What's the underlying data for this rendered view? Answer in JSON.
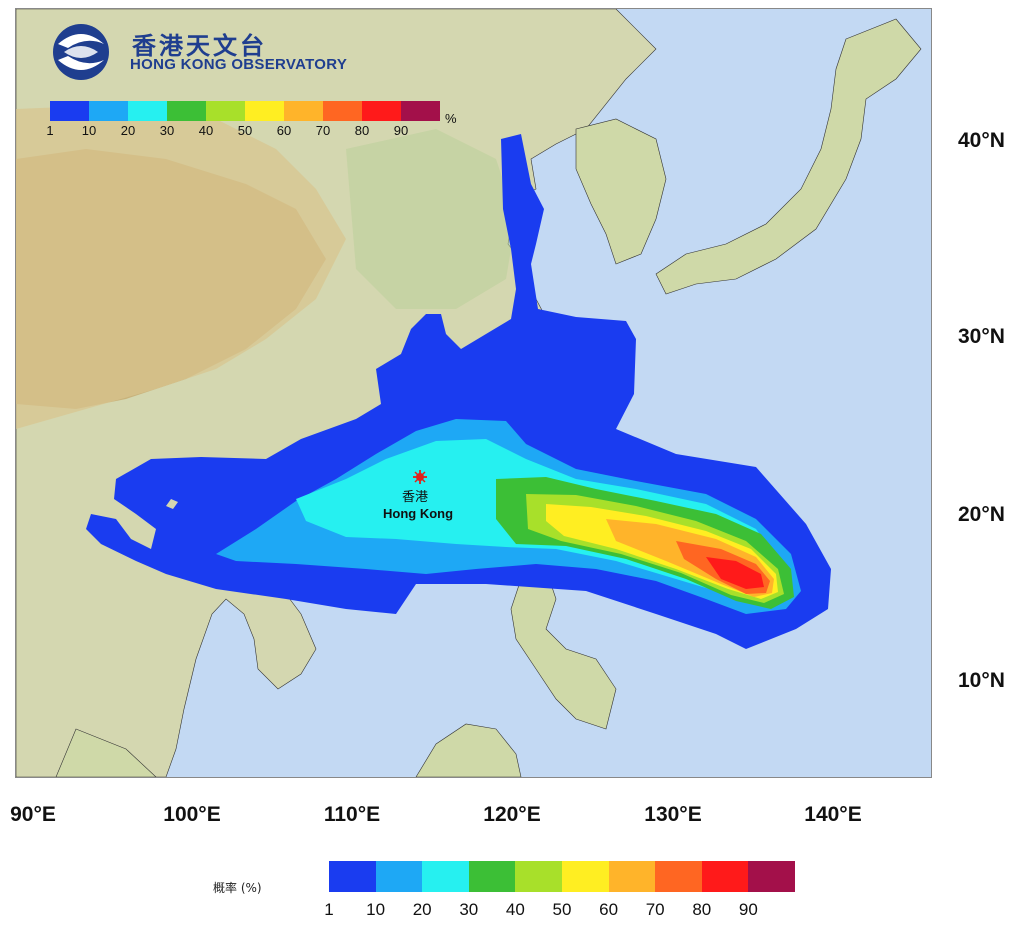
{
  "logo": {
    "name_cn": "香港天文台",
    "name_en": "HONG KONG OBSERVATORY",
    "brand_color": "#1f3e8f"
  },
  "legend": {
    "colors": [
      "#1a3cf0",
      "#1ea8f5",
      "#26f0f0",
      "#3cbf36",
      "#a8e02a",
      "#ffee22",
      "#ffb42a",
      "#ff6622",
      "#ff1a1a",
      "#a3104a"
    ],
    "ticks": [
      "1",
      "10",
      "20",
      "30",
      "40",
      "50",
      "60",
      "70",
      "80",
      "90"
    ],
    "unit": "%",
    "title": "概率 (%)"
  },
  "axes": {
    "lat_labels": [
      "40°N",
      "30°N",
      "20°N",
      "10°N"
    ],
    "lat_values": [
      40,
      30,
      20,
      10
    ],
    "lon_labels": [
      "90°E",
      "100°E",
      "110°E",
      "120°E",
      "130°E",
      "140°E"
    ],
    "lon_values": [
      90,
      100,
      110,
      120,
      130,
      140
    ]
  },
  "marker": {
    "label_cn": "香港",
    "label_en": "Hong Kong",
    "lat": 22.3,
    "lon": 114.2,
    "color": "#e0201a"
  }
}
